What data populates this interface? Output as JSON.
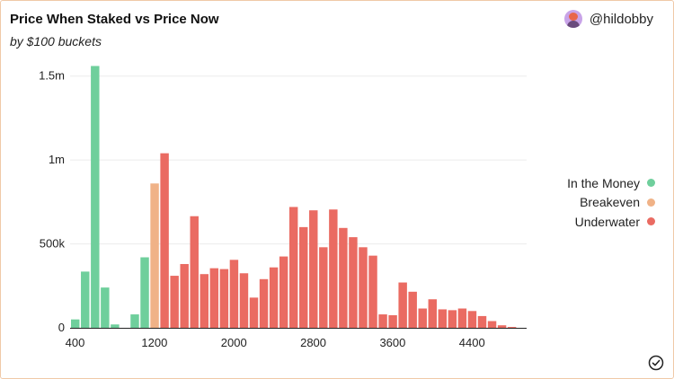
{
  "header": {
    "title": "Price When Staked vs Price Now",
    "subtitle": "by $100 buckets",
    "author": "@hildobby"
  },
  "colors": {
    "in_the_money": "#6fcf9c",
    "breakeven": "#f0b287",
    "underwater": "#ea6b62"
  },
  "legend": {
    "items": [
      {
        "label": "In the Money",
        "color": "#6fcf9c"
      },
      {
        "label": "Breakeven",
        "color": "#f0b287"
      },
      {
        "label": "Underwater",
        "color": "#ea6b62"
      }
    ]
  },
  "chart_data": {
    "type": "bar",
    "title": "Price When Staked vs Price Now",
    "subtitle": "by $100 buckets",
    "bucket_size": 100,
    "x": [
      400,
      500,
      600,
      700,
      800,
      900,
      1000,
      1100,
      1200,
      1300,
      1400,
      1500,
      1600,
      1700,
      1800,
      1900,
      2000,
      2100,
      2200,
      2300,
      2400,
      2500,
      2600,
      2700,
      2800,
      2900,
      3000,
      3100,
      3200,
      3300,
      3400,
      3500,
      3600,
      3700,
      3800,
      3900,
      4000,
      4100,
      4200,
      4300,
      4400,
      4500,
      4600,
      4700,
      4800
    ],
    "values": [
      50000,
      335000,
      1560000,
      240000,
      20000,
      0,
      80000,
      420000,
      860000,
      1040000,
      310000,
      380000,
      665000,
      320000,
      355000,
      350000,
      405000,
      325000,
      180000,
      290000,
      360000,
      425000,
      720000,
      600000,
      700000,
      480000,
      705000,
      595000,
      540000,
      480000,
      430000,
      80000,
      75000,
      270000,
      215000,
      115000,
      170000,
      110000,
      105000,
      115000,
      100000,
      70000,
      40000,
      15000,
      5000
    ],
    "categories_status": [
      "in_the_money",
      "in_the_money",
      "in_the_money",
      "in_the_money",
      "in_the_money",
      "in_the_money",
      "in_the_money",
      "in_the_money",
      "breakeven",
      "underwater",
      "underwater",
      "underwater",
      "underwater",
      "underwater",
      "underwater",
      "underwater",
      "underwater",
      "underwater",
      "underwater",
      "underwater",
      "underwater",
      "underwater",
      "underwater",
      "underwater",
      "underwater",
      "underwater",
      "underwater",
      "underwater",
      "underwater",
      "underwater",
      "underwater",
      "underwater",
      "underwater",
      "underwater",
      "underwater",
      "underwater",
      "underwater",
      "underwater",
      "underwater",
      "underwater",
      "underwater",
      "underwater",
      "underwater",
      "underwater",
      "underwater"
    ],
    "x_ticks": [
      400,
      1200,
      2000,
      2800,
      3600,
      4400
    ],
    "x_tick_labels": [
      "400",
      "1200",
      "2000",
      "2800",
      "3600",
      "4400"
    ],
    "y_ticks": [
      0,
      500000,
      1000000,
      1500000
    ],
    "y_tick_labels": [
      "0",
      "500k",
      "1m",
      "1.5m"
    ],
    "xlim": [
      350,
      4950
    ],
    "ylim": [
      0,
      1600000
    ],
    "grid": true,
    "legend_position": "right"
  }
}
